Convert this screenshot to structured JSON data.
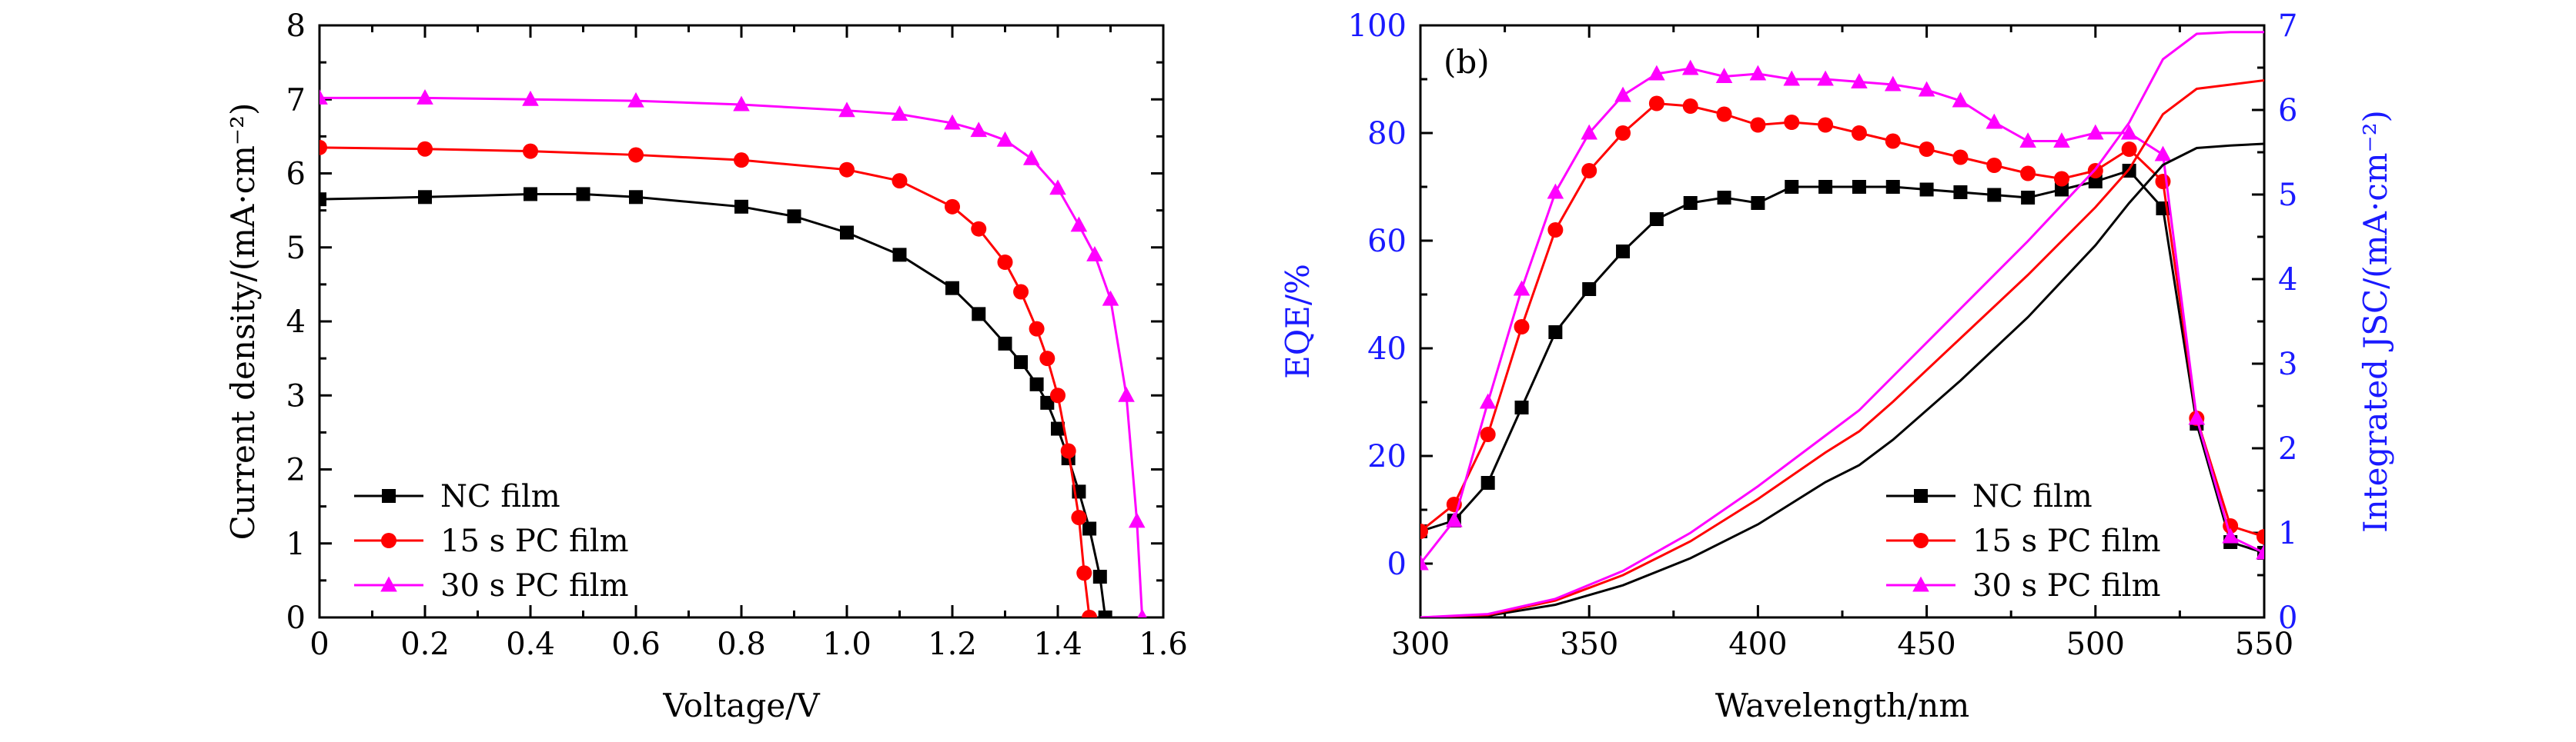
{
  "chart_data": [
    {
      "type": "line",
      "panel": "",
      "xlabel": "Voltage/V",
      "ylabel": "Current density/(mA·cm⁻²)",
      "xlim": [
        0,
        1.6
      ],
      "ylim": [
        0,
        8
      ],
      "xticks": [
        0,
        0.2,
        0.4,
        0.6,
        0.8,
        1.0,
        1.2,
        1.4,
        1.6
      ],
      "xtick_labels": [
        "0",
        "0.2",
        "0.4",
        "0.6",
        "0.8",
        "1.0",
        "1.2",
        "1.4",
        "1.6"
      ],
      "yticks": [
        0,
        1,
        2,
        3,
        4,
        5,
        6,
        7,
        8
      ],
      "ytick_labels": [
        "0",
        "1",
        "2",
        "3",
        "4",
        "5",
        "6",
        "7",
        "8"
      ],
      "legend_position": "bottom-left",
      "series": [
        {
          "name": "NC film",
          "color": "#000000",
          "marker": "square",
          "x": [
            0,
            0.2,
            0.4,
            0.5,
            0.6,
            0.8,
            0.9,
            1.0,
            1.1,
            1.2,
            1.25,
            1.3,
            1.33,
            1.36,
            1.38,
            1.4,
            1.42,
            1.44,
            1.46,
            1.48,
            1.49
          ],
          "y": [
            5.65,
            5.68,
            5.72,
            5.72,
            5.68,
            5.55,
            5.42,
            5.2,
            4.9,
            4.45,
            4.1,
            3.7,
            3.45,
            3.15,
            2.9,
            2.55,
            2.15,
            1.7,
            1.2,
            0.55,
            0
          ]
        },
        {
          "name": "15 s PC film",
          "color": "#ff0000",
          "marker": "circle",
          "x": [
            0,
            0.2,
            0.4,
            0.6,
            0.8,
            1.0,
            1.1,
            1.2,
            1.25,
            1.3,
            1.33,
            1.36,
            1.38,
            1.4,
            1.42,
            1.44,
            1.45,
            1.46
          ],
          "y": [
            6.35,
            6.33,
            6.3,
            6.25,
            6.18,
            6.05,
            5.9,
            5.55,
            5.25,
            4.8,
            4.4,
            3.9,
            3.5,
            3.0,
            2.25,
            1.35,
            0.6,
            0
          ]
        },
        {
          "name": "30 s PC film",
          "color": "#ff00ff",
          "marker": "triangle",
          "x": [
            0,
            0.2,
            0.4,
            0.6,
            0.8,
            1.0,
            1.1,
            1.2,
            1.25,
            1.3,
            1.35,
            1.4,
            1.44,
            1.47,
            1.5,
            1.53,
            1.55,
            1.56
          ],
          "y": [
            7.02,
            7.02,
            7.0,
            6.98,
            6.93,
            6.85,
            6.8,
            6.68,
            6.58,
            6.45,
            6.2,
            5.8,
            5.3,
            4.9,
            4.3,
            3.0,
            1.3,
            0
          ]
        }
      ]
    },
    {
      "type": "line",
      "panel": "(b)",
      "xlabel": "Wavelength/nm",
      "ylabel": "EQE/%",
      "y2label": "Integrated JSC/(mA·cm⁻²)",
      "xlim": [
        300,
        550
      ],
      "ylim": [
        -10,
        100
      ],
      "y2lim": [
        0,
        7
      ],
      "xticks": [
        300,
        350,
        400,
        450,
        500,
        550
      ],
      "xtick_labels": [
        "300",
        "350",
        "400",
        "450",
        "500",
        "550"
      ],
      "yticks": [
        0,
        20,
        40,
        60,
        80,
        100
      ],
      "ytick_labels": [
        "0",
        "20",
        "40",
        "60",
        "80",
        "100"
      ],
      "y2ticks": [
        0,
        1,
        2,
        3,
        4,
        5,
        6,
        7
      ],
      "y2tick_labels": [
        "0",
        "1",
        "2",
        "3",
        "4",
        "5",
        "6",
        "7"
      ],
      "left_axis_color": "#1a1aff",
      "right_axis_color": "#1a1aff",
      "legend_position": "bottom-right",
      "series": [
        {
          "name": "NC film",
          "color": "#000000",
          "marker": "square",
          "axis": "left",
          "x": [
            300,
            310,
            320,
            330,
            340,
            350,
            360,
            370,
            380,
            390,
            400,
            410,
            420,
            430,
            440,
            450,
            460,
            470,
            480,
            490,
            500,
            510,
            520,
            530,
            540,
            550
          ],
          "y": [
            6,
            8,
            15,
            29,
            43,
            51,
            58,
            64,
            67,
            68,
            67,
            70,
            70,
            70,
            70,
            69.5,
            69,
            68.5,
            68,
            69.5,
            71,
            73,
            66,
            26,
            4,
            2
          ]
        },
        {
          "name": "15 s PC film",
          "color": "#ff0000",
          "marker": "circle",
          "axis": "left",
          "x": [
            300,
            310,
            320,
            330,
            340,
            350,
            360,
            370,
            380,
            390,
            400,
            410,
            420,
            430,
            440,
            450,
            460,
            470,
            480,
            490,
            500,
            510,
            520,
            530,
            540,
            550
          ],
          "y": [
            6,
            11,
            24,
            44,
            62,
            73,
            80,
            85.5,
            85,
            83.5,
            81.5,
            82,
            81.5,
            80,
            78.5,
            77,
            75.5,
            74,
            72.5,
            71.5,
            73,
            77,
            71,
            27,
            7,
            5
          ]
        },
        {
          "name": "30 s PC film",
          "color": "#ff00ff",
          "marker": "triangle",
          "axis": "left",
          "x": [
            300,
            310,
            320,
            330,
            340,
            350,
            360,
            370,
            380,
            390,
            400,
            410,
            420,
            430,
            440,
            450,
            460,
            470,
            480,
            490,
            500,
            510,
            520,
            530,
            540,
            550
          ],
          "y": [
            0,
            8,
            30,
            51,
            69,
            80,
            87,
            91,
            92,
            90.5,
            91,
            90,
            90,
            89.5,
            89,
            88,
            86,
            82,
            78.5,
            78.5,
            80,
            80,
            76,
            27,
            5,
            2
          ]
        },
        {
          "name": "",
          "color": "#000000",
          "marker": "none",
          "axis": "right",
          "x": [
            300,
            320,
            340,
            360,
            380,
            400,
            420,
            430,
            440,
            460,
            480,
            500,
            510,
            520,
            530,
            540,
            550
          ],
          "y": [
            0,
            0.02,
            0.15,
            0.38,
            0.7,
            1.1,
            1.6,
            1.8,
            2.1,
            2.8,
            3.55,
            4.4,
            4.9,
            5.35,
            5.55,
            5.58,
            5.6
          ]
        },
        {
          "name": "",
          "color": "#ff0000",
          "marker": "none",
          "axis": "right",
          "x": [
            300,
            320,
            340,
            360,
            380,
            400,
            420,
            430,
            440,
            460,
            480,
            500,
            510,
            520,
            530,
            540,
            550
          ],
          "y": [
            0,
            0.03,
            0.2,
            0.5,
            0.9,
            1.4,
            1.95,
            2.2,
            2.55,
            3.3,
            4.05,
            4.85,
            5.3,
            5.95,
            6.25,
            6.3,
            6.35
          ]
        },
        {
          "name": "",
          "color": "#ff00ff",
          "marker": "none",
          "axis": "right",
          "x": [
            300,
            320,
            340,
            360,
            380,
            400,
            420,
            430,
            440,
            460,
            480,
            500,
            510,
            520,
            530,
            540,
            550
          ],
          "y": [
            0,
            0.04,
            0.22,
            0.55,
            1.0,
            1.55,
            2.15,
            2.45,
            2.85,
            3.65,
            4.45,
            5.3,
            5.85,
            6.6,
            6.9,
            6.92,
            6.92
          ]
        }
      ]
    }
  ]
}
